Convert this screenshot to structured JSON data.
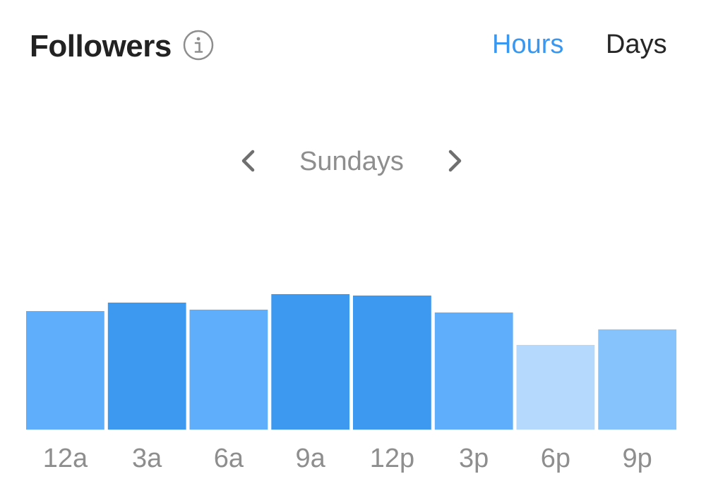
{
  "header": {
    "title": "Followers",
    "info_icon": "info-icon"
  },
  "tabs": [
    {
      "label": "Hours",
      "active": true
    },
    {
      "label": "Days",
      "active": false
    }
  ],
  "navigator": {
    "label": "Sundays",
    "prev_icon": "chevron-left-icon",
    "next_icon": "chevron-right-icon"
  },
  "colors": {
    "active_tab": "#3897f0",
    "inactive_tab": "#262626",
    "muted_text": "#8e8e8e"
  },
  "chart_data": {
    "type": "bar",
    "categories": [
      "12a",
      "3a",
      "6a",
      "9a",
      "12p",
      "3p",
      "6p",
      "9p"
    ],
    "values": [
      84,
      90,
      85,
      96,
      95,
      83,
      60,
      71
    ],
    "ylim": [
      0,
      100
    ],
    "grid": false,
    "bar_colors": [
      "#5eaefc",
      "#3d98f0",
      "#5eaefc",
      "#3d98f0",
      "#3d98f0",
      "#5eaefc",
      "#b5d9fd",
      "#86c2fb"
    ]
  }
}
